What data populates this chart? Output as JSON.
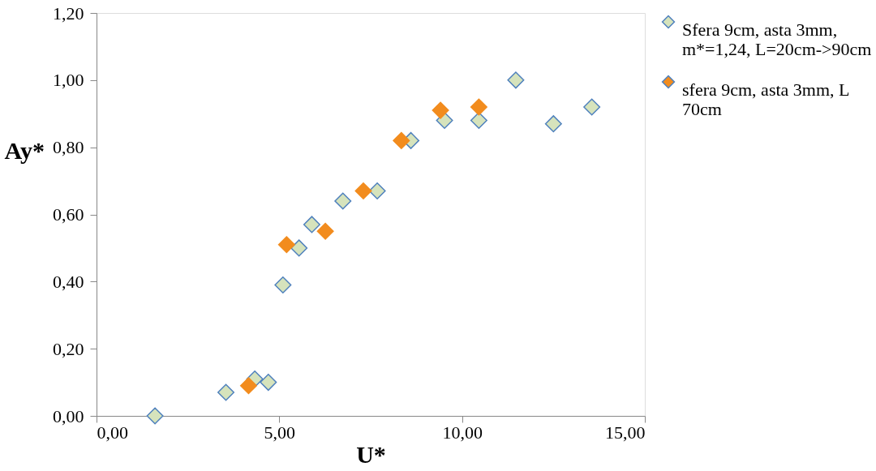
{
  "chart_data": {
    "type": "scatter",
    "xlabel": "U*",
    "ylabel": "Ay*",
    "xlim": [
      0,
      15
    ],
    "xticks": [
      {
        "value": 0,
        "label": "0,00"
      },
      {
        "value": 5,
        "label": "5,00"
      },
      {
        "value": 10,
        "label": "10,00"
      },
      {
        "value": 15,
        "label": "15,00"
      }
    ],
    "ylim": [
      0,
      1.2
    ],
    "yticks": [
      {
        "value": 0,
        "label": "0,00"
      },
      {
        "value": 0.2,
        "label": "0,20"
      },
      {
        "value": 0.4,
        "label": "0,40"
      },
      {
        "value": 0.6,
        "label": "0,60"
      },
      {
        "value": 0.8,
        "label": "0,80"
      },
      {
        "value": 1.0,
        "label": "1,00"
      },
      {
        "value": 1.2,
        "label": "1,20"
      }
    ],
    "grid": false,
    "legend": "right",
    "marker": "diamond",
    "series": [
      {
        "name": "Sfera 9cm, asta 3mm, m*=1,24, L=20cm->90cm",
        "color": "#d6e3bc",
        "x": [
          1.6,
          3.54,
          4.33,
          4.7,
          5.1,
          5.54,
          5.89,
          6.74,
          7.68,
          8.6,
          9.52,
          10.46,
          11.47,
          12.5,
          13.55
        ],
        "values": [
          0.0,
          0.07,
          0.11,
          0.1,
          0.39,
          0.5,
          0.57,
          0.64,
          0.67,
          0.82,
          0.88,
          0.88,
          1.0,
          0.87,
          0.92
        ]
      },
      {
        "name": "sfera 9cm, asta 3mm, L 70cm",
        "color": "#f28c1e",
        "x": [
          4.16,
          5.2,
          6.26,
          7.3,
          8.34,
          9.41,
          10.46
        ],
        "values": [
          0.09,
          0.51,
          0.55,
          0.67,
          0.82,
          0.91,
          0.92
        ]
      }
    ]
  }
}
